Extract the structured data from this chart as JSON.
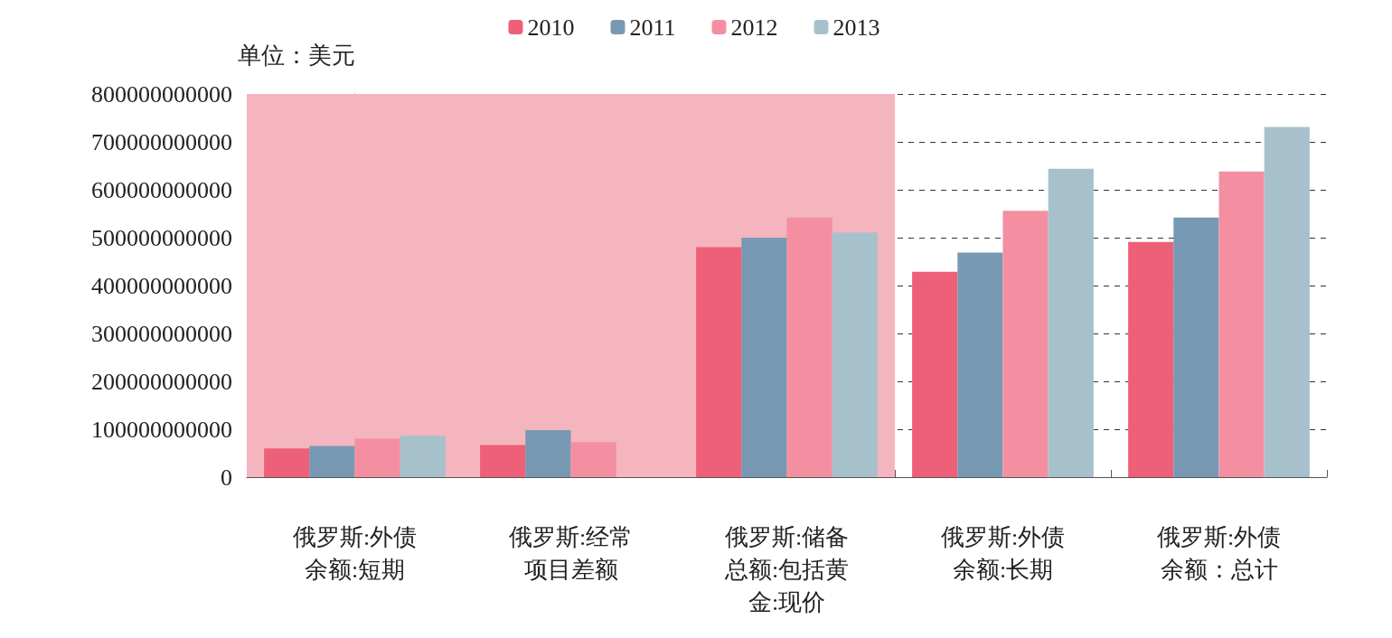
{
  "chart_data": {
    "type": "bar",
    "ylabel": "单位：美元",
    "categories": [
      "俄罗斯:外债余额:短期",
      "俄罗斯:经常项目差额",
      "俄罗斯:储备总额:包括黄金:现价",
      "俄罗斯:外债余额:长期",
      "俄罗斯:外债余额：总计"
    ],
    "series": [
      {
        "name": "2010",
        "color": "#ee5f78",
        "values": [
          60000000000,
          67000000000,
          480000000000,
          429000000000,
          491000000000
        ]
      },
      {
        "name": "2011",
        "color": "#7799b3",
        "values": [
          65000000000,
          98000000000,
          500000000000,
          469000000000,
          542000000000
        ]
      },
      {
        "name": "2012",
        "color": "#f48fa2",
        "values": [
          80000000000,
          73000000000,
          542000000000,
          556000000000,
          638000000000
        ]
      },
      {
        "name": "2013",
        "color": "#a7c1cc",
        "values": [
          87000000000,
          null,
          511000000000,
          644000000000,
          731000000000
        ]
      }
    ],
    "ylim": [
      0,
      800000000000
    ],
    "yticks": [
      0,
      100000000000,
      200000000000,
      300000000000,
      400000000000,
      500000000000,
      600000000000,
      700000000000,
      800000000000
    ],
    "grid": "y",
    "legend": "top",
    "bands": [
      {
        "axis": "x",
        "from": "俄罗斯:外债余额:短期",
        "to": "俄罗斯:储备总额:包括黄金:现价",
        "color": "#f5b5bf"
      }
    ]
  }
}
